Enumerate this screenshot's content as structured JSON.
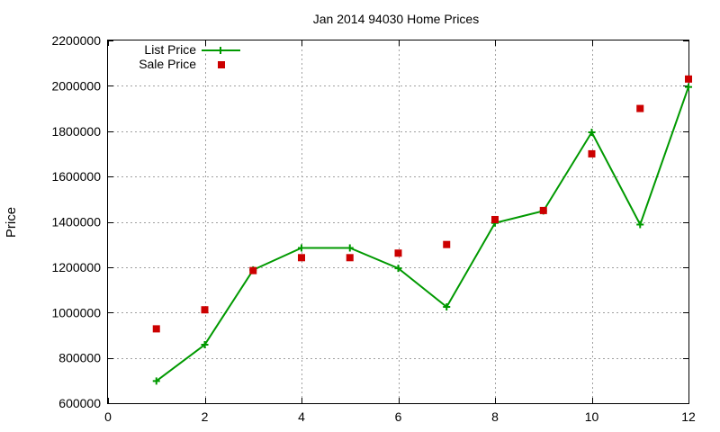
{
  "chart_data": {
    "type": "line",
    "title": "Jan 2014 94030 Home Prices",
    "xlabel": "",
    "ylabel": "Price",
    "xlim": [
      0,
      12
    ],
    "ylim": [
      600000,
      2200000
    ],
    "xticks": [
      0,
      2,
      4,
      6,
      8,
      10,
      12
    ],
    "yticks": [
      600000,
      800000,
      1000000,
      1200000,
      1400000,
      1600000,
      1800000,
      2000000,
      2200000
    ],
    "grid": true,
    "legend_position": "top-left",
    "series": [
      {
        "name": "List Price",
        "style": "line-with-plus-markers",
        "color": "#009900",
        "x": [
          1,
          2,
          3,
          4,
          5,
          6,
          7,
          8,
          9,
          10,
          11,
          12
        ],
        "y": [
          698000,
          858000,
          1188000,
          1285000,
          1285000,
          1195000,
          1025000,
          1395000,
          1448000,
          1795000,
          1388000,
          1995000
        ]
      },
      {
        "name": "Sale Price",
        "style": "square-markers",
        "color": "#cc0000",
        "x": [
          1,
          2,
          3,
          4,
          5,
          6,
          7,
          8,
          9,
          10,
          11,
          12
        ],
        "y": [
          928000,
          1012000,
          1185000,
          1242000,
          1242000,
          1262000,
          1300000,
          1410000,
          1450000,
          1700000,
          1900000,
          2030000
        ]
      }
    ]
  }
}
